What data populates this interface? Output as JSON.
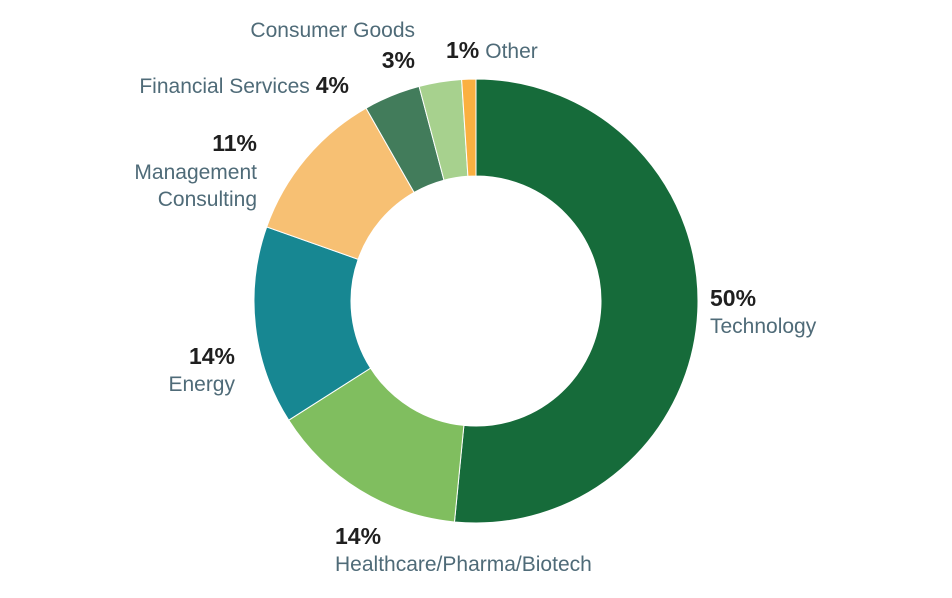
{
  "chart_data": {
    "type": "pie",
    "donut": true,
    "start_angle_deg": 0,
    "direction": "clockwise",
    "slices": [
      {
        "label": "Technology",
        "value": 50,
        "value_label": "50%",
        "color": "#166b3a"
      },
      {
        "label": "Healthcare/Pharma/Biotech",
        "value": 14,
        "value_label": "14%",
        "color": "#80be5f"
      },
      {
        "label": "Energy",
        "value": 14,
        "value_label": "14%",
        "color": "#178792"
      },
      {
        "label": "Management Consulting",
        "label_lines": [
          "Management",
          "Consulting"
        ],
        "value": 11,
        "value_label": "11%",
        "color": "#f7c073"
      },
      {
        "label": "Financial Services",
        "value": 4,
        "value_label": "4%",
        "color": "#427c5b"
      },
      {
        "label": "Consumer Goods",
        "value": 3,
        "value_label": "3%",
        "color": "#a7d18e"
      },
      {
        "label": "Other",
        "value": 1,
        "value_label": "1%",
        "color": "#fbb040"
      }
    ]
  }
}
